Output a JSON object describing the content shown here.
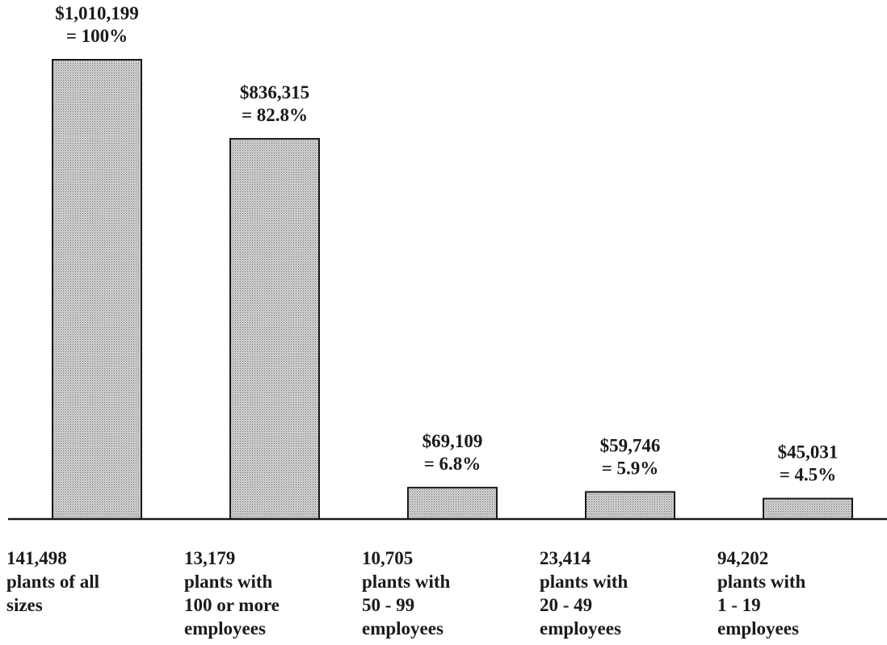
{
  "chart_data": {
    "type": "bar",
    "categories": [
      [
        "141,498",
        "plants of all",
        "sizes"
      ],
      [
        "13,179",
        "plants with",
        "100 or more",
        "employees"
      ],
      [
        "10,705",
        "plants with",
        "50 - 99",
        "employees"
      ],
      [
        "23,414",
        "plants with",
        "20 - 49",
        "employees"
      ],
      [
        "94,202",
        "plants with",
        "1 - 19",
        "employees"
      ]
    ],
    "values": [
      1010199,
      836315,
      69109,
      59746,
      45031
    ],
    "value_labels": [
      [
        "$1,010,199",
        "= 100%"
      ],
      [
        "$836,315",
        "= 82.8%"
      ],
      [
        "$69,109",
        "= 6.8%"
      ],
      [
        "$59,746",
        "= 5.9%"
      ],
      [
        "$45,031",
        "= 4.5%"
      ]
    ],
    "ylim": [
      0,
      1010199
    ],
    "grid": false,
    "legend": "none",
    "bar_fill": "#c8c8c8",
    "ink_color": "#1a1a1a"
  }
}
